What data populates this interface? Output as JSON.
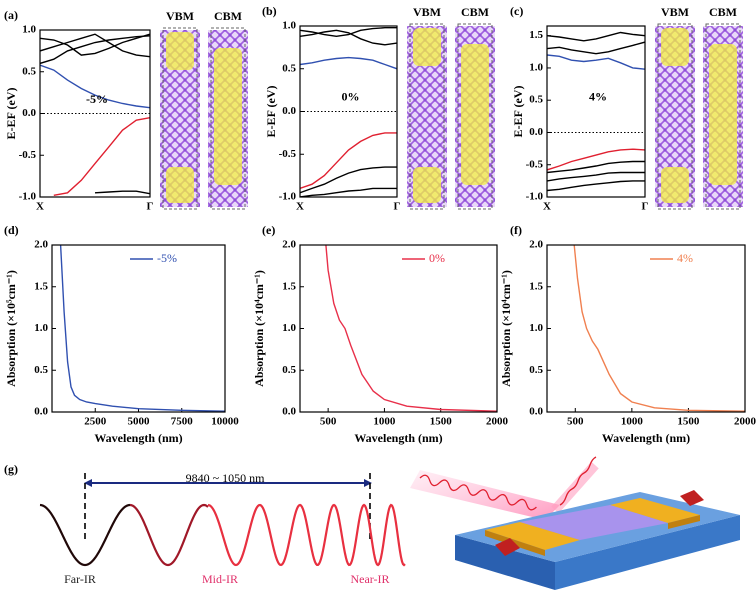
{
  "chart_data": [
    {
      "type": "line",
      "title": "(a)",
      "ylabel": "E-EF (eV)",
      "annotation": "-5%",
      "structure_labels": [
        "VBM",
        "CBM"
      ],
      "hline": 0,
      "x": [
        0,
        0.125,
        0.25,
        0.375,
        0.5,
        0.625,
        0.75,
        0.875,
        1
      ],
      "xlim": [
        0,
        1
      ],
      "xticks": [
        {
          "value": 0,
          "label": "X"
        },
        {
          "value": 1,
          "label": "Γ"
        }
      ],
      "ylim": [
        -1,
        1
      ],
      "yticks": [
        {
          "value": -1,
          "label": "-1.0"
        },
        -0.5,
        {
          "value": 0,
          "label": "0.0"
        },
        0.5,
        {
          "value": 1,
          "label": "1.0"
        }
      ],
      "series": [
        {
          "color": "#000000",
          "values": [
            0.6,
            0.65,
            0.75,
            0.8,
            0.85,
            0.88,
            0.9,
            0.92,
            0.93
          ]
        },
        {
          "color": "#000000",
          "values": [
            0.75,
            0.8,
            0.85,
            0.9,
            0.95,
            0.85,
            0.75,
            0.7,
            0.68
          ]
        },
        {
          "color": "#000000",
          "values": [
            0.9,
            0.88,
            0.82,
            0.7,
            0.72,
            0.78,
            0.85,
            0.9,
            0.95
          ]
        },
        {
          "color": "#000000",
          "values": [
            null,
            null,
            null,
            null,
            -0.95,
            -0.94,
            -0.93,
            -0.93,
            -0.96
          ]
        },
        {
          "color": "#3050b0",
          "values": [
            0.58,
            0.52,
            0.4,
            0.3,
            0.22,
            0.16,
            0.12,
            0.09,
            0.07
          ]
        },
        {
          "color": "#e02030",
          "values": [
            null,
            -0.98,
            -0.95,
            -0.8,
            -0.6,
            -0.4,
            -0.2,
            -0.08,
            -0.05
          ]
        }
      ]
    },
    {
      "type": "line",
      "title": "(b)",
      "ylabel": "E-EF (eV)",
      "annotation": "0%",
      "structure_labels": [
        "VBM",
        "CBM"
      ],
      "hline": 0,
      "x": [
        0,
        0.125,
        0.25,
        0.375,
        0.5,
        0.625,
        0.75,
        0.875,
        1
      ],
      "xlim": [
        0,
        1
      ],
      "xticks": [
        {
          "value": 0,
          "label": "X"
        },
        {
          "value": 1,
          "label": "Γ"
        }
      ],
      "ylim": [
        -1,
        1
      ],
      "yticks": [
        {
          "value": -1,
          "label": "-1.0"
        },
        -0.5,
        {
          "value": 0,
          "label": "0.0"
        },
        0.5,
        {
          "value": 1,
          "label": "1.0"
        }
      ],
      "series": [
        {
          "color": "#000000",
          "values": [
            0.88,
            0.9,
            0.93,
            0.95,
            0.92,
            0.85,
            0.8,
            0.78,
            0.8
          ]
        },
        {
          "color": "#000000",
          "values": [
            0.95,
            0.93,
            0.9,
            0.88,
            0.9,
            0.95,
            0.97,
            0.98,
            0.98
          ]
        },
        {
          "color": "#000000",
          "values": [
            -0.95,
            -0.9,
            -0.85,
            -0.78,
            -0.72,
            -0.68,
            -0.66,
            -0.65,
            -0.65
          ]
        },
        {
          "color": "#000000",
          "values": [
            -1,
            -0.98,
            -0.97,
            -0.95,
            -0.93,
            -0.92,
            -0.9,
            -0.9,
            -0.9
          ]
        },
        {
          "color": "#3050b0",
          "values": [
            0.55,
            0.57,
            0.6,
            0.62,
            0.63,
            0.62,
            0.6,
            0.55,
            0.5
          ]
        },
        {
          "color": "#e02030",
          "values": [
            -0.9,
            -0.85,
            -0.75,
            -0.6,
            -0.45,
            -0.35,
            -0.28,
            -0.25,
            -0.25
          ]
        }
      ]
    },
    {
      "type": "line",
      "title": "(c)",
      "ylabel": "E-EF (eV)",
      "annotation": "4%",
      "structure_labels": [
        "VBM",
        "CBM"
      ],
      "hline": 0,
      "x": [
        0,
        0.125,
        0.25,
        0.375,
        0.5,
        0.625,
        0.75,
        0.875,
        1
      ],
      "xlim": [
        0,
        1
      ],
      "xticks": [
        {
          "value": 0,
          "label": "X"
        },
        {
          "value": 1,
          "label": "Γ"
        }
      ],
      "ylim": [
        -1,
        1.65
      ],
      "yticks": [
        {
          "value": -1,
          "label": "-1.0"
        },
        -0.5,
        {
          "value": 0,
          "label": "0.0"
        },
        0.5,
        {
          "value": 1,
          "label": "1.0"
        },
        1.5
      ],
      "series": [
        {
          "color": "#000000",
          "values": [
            1.3,
            1.32,
            1.28,
            1.25,
            1.22,
            1.25,
            1.3,
            1.35,
            1.4
          ]
        },
        {
          "color": "#000000",
          "values": [
            1.5,
            1.48,
            1.45,
            1.42,
            1.45,
            1.5,
            1.55,
            1.52,
            1.5
          ]
        },
        {
          "color": "#000000",
          "values": [
            -0.62,
            -0.6,
            -0.58,
            -0.55,
            -0.52,
            -0.48,
            -0.46,
            -0.45,
            -0.45
          ]
        },
        {
          "color": "#000000",
          "values": [
            -0.75,
            -0.72,
            -0.7,
            -0.68,
            -0.66,
            -0.63,
            -0.62,
            -0.62,
            -0.62
          ]
        },
        {
          "color": "#000000",
          "values": [
            -0.9,
            -0.88,
            -0.85,
            -0.82,
            -0.8,
            -0.78,
            -0.76,
            -0.75,
            -0.75
          ]
        },
        {
          "color": "#3050b0",
          "values": [
            1.2,
            1.18,
            1.12,
            1.1,
            1.12,
            1.15,
            1.08,
            1.0,
            0.98
          ]
        },
        {
          "color": "#e02030",
          "values": [
            -0.58,
            -0.52,
            -0.45,
            -0.4,
            -0.35,
            -0.3,
            -0.27,
            -0.26,
            -0.27
          ]
        }
      ]
    },
    {
      "type": "line",
      "title": "(d)",
      "ylabel": "Absorption (×10⁵cm⁻¹)",
      "xlabel": "Wavelength (nm)",
      "x": [
        500,
        700,
        900,
        1100,
        1300,
        1600,
        2000,
        2500,
        3500,
        5000,
        7500,
        10000
      ],
      "xlim": [
        0,
        10000
      ],
      "xticks": [
        2500,
        5000,
        7500,
        10000
      ],
      "ylim": [
        0,
        2
      ],
      "yticks": [
        {
          "value": 0,
          "label": "0.0"
        },
        0.5,
        {
          "value": 1,
          "label": "1.0"
        },
        1.5,
        {
          "value": 2,
          "label": "2.0"
        }
      ],
      "series": [
        {
          "name": "-5%",
          "color": "#3050b0",
          "values": [
            2.0,
            1.2,
            0.6,
            0.3,
            0.2,
            0.15,
            0.12,
            0.1,
            0.07,
            0.04,
            0.02,
            0.01
          ]
        }
      ]
    },
    {
      "type": "line",
      "title": "(e)",
      "ylabel": "Absorption (×10⁴cm⁻¹)",
      "xlabel": "Wavelength (nm)",
      "x": [
        480,
        500,
        550,
        600,
        650,
        700,
        800,
        900,
        1000,
        1200,
        1500,
        2000
      ],
      "xlim": [
        250,
        2000
      ],
      "xticks": [
        500,
        1000,
        1500,
        2000
      ],
      "ylim": [
        0,
        2
      ],
      "yticks": [
        {
          "value": 0,
          "label": "0.0"
        },
        0.5,
        {
          "value": 1,
          "label": "1.0"
        },
        1.5,
        {
          "value": 2,
          "label": "2.0"
        }
      ],
      "series": [
        {
          "name": "0%",
          "color": "#e8304a",
          "values": [
            2.0,
            1.7,
            1.3,
            1.1,
            1.0,
            0.8,
            0.45,
            0.25,
            0.15,
            0.07,
            0.03,
            0.01
          ]
        }
      ]
    },
    {
      "type": "line",
      "title": "(f)",
      "ylabel": "Absorption (×10⁴cm⁻¹)",
      "xlabel": "Wavelength (nm)",
      "x": [
        490,
        520,
        560,
        600,
        650,
        700,
        800,
        900,
        1000,
        1200,
        1500,
        2000
      ],
      "xlim": [
        250,
        2000
      ],
      "xticks": [
        500,
        1000,
        1500,
        2000
      ],
      "ylim": [
        0,
        2
      ],
      "yticks": [
        {
          "value": 0,
          "label": "0.0"
        },
        0.5,
        {
          "value": 1,
          "label": "1.0"
        },
        1.5,
        {
          "value": 2,
          "label": "2.0"
        }
      ],
      "series": [
        {
          "name": "4%",
          "color": "#f08050",
          "values": [
            2.0,
            1.6,
            1.2,
            1.0,
            0.85,
            0.75,
            0.45,
            0.22,
            0.12,
            0.05,
            0.02,
            0.01
          ]
        }
      ]
    }
  ],
  "diagram": {
    "label": "(g)",
    "range": "9840 ~ 1050 nm",
    "bands": [
      "Far-IR",
      "Mid-IR",
      "Near-IR"
    ]
  }
}
